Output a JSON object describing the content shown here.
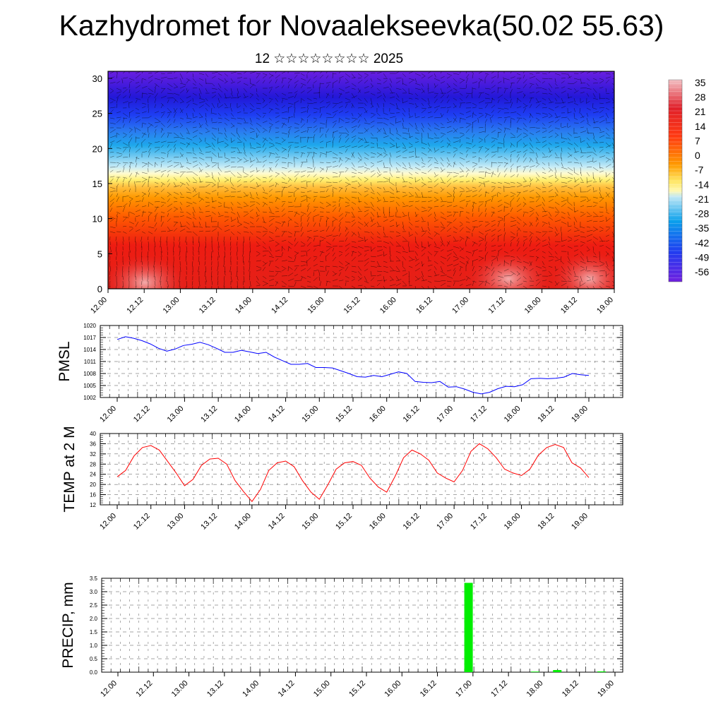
{
  "title": "Kazhydromet for Novaalekseevka(50.02 55.63)",
  "subtitle": "12 ☆☆☆☆☆☆☆☆ 2025",
  "x_labels": [
    "12.00",
    "12.12",
    "13.00",
    "13.12",
    "14.00",
    "14.12",
    "15.00",
    "15.12",
    "16.00",
    "16.12",
    "17.00",
    "17.12",
    "18.00",
    "18.12",
    "19.00"
  ],
  "chart_data": [
    {
      "type": "heatmap",
      "name": "cross-section",
      "x_labels": [
        "12.00",
        "12.12",
        "13.00",
        "13.12",
        "14.00",
        "14.12",
        "15.00",
        "15.12",
        "16.00",
        "16.12",
        "17.00",
        "17.12",
        "18.00",
        "18.12",
        "19.00"
      ],
      "y_ticks": [
        0,
        5,
        10,
        15,
        20,
        25,
        30
      ],
      "ylim": [
        0,
        31
      ],
      "colorbar_labels": [
        "35",
        "28",
        "21",
        "14",
        "7",
        "0",
        "-7",
        "-14",
        "-21",
        "-28",
        "-35",
        "-42",
        "-49",
        "-56"
      ],
      "colors": [
        "#f7c8c8",
        "#e21a1a",
        "#ff4500",
        "#ff9a00",
        "#fff080",
        "#c2e8f5",
        "#0aa0ec",
        "#1f3df0",
        "#6818e8"
      ]
    },
    {
      "type": "line",
      "name": "PMSL",
      "ylabel": "PMSL",
      "ylim": [
        1002,
        1020
      ],
      "y_ticks": [
        1002,
        1005,
        1008,
        1011,
        1014,
        1017,
        1020
      ],
      "x_labels": [
        "12.00",
        "12.12",
        "13.00",
        "13.12",
        "14.00",
        "14.12",
        "15.00",
        "15.12",
        "16.00",
        "16.12",
        "17.00",
        "17.12",
        "18.00",
        "18.12",
        "19.00"
      ],
      "color": "#0000ff",
      "values": [
        1016.5,
        1017.2,
        1016.8,
        1016.2,
        1015.4,
        1014.3,
        1013.6,
        1014.1,
        1015.0,
        1015.3,
        1015.8,
        1015.2,
        1014.3,
        1013.3,
        1013.3,
        1013.8,
        1013.4,
        1013.0,
        1013.3,
        1012.1,
        1011.2,
        1010.3,
        1010.3,
        1010.5,
        1009.5,
        1009.5,
        1009.4,
        1008.7,
        1008.0,
        1007.2,
        1007.1,
        1007.5,
        1007.2,
        1007.8,
        1008.4,
        1008.0,
        1006.0,
        1005.8,
        1005.7,
        1006.0,
        1004.6,
        1004.7,
        1004.1,
        1003.3,
        1002.9,
        1003.3,
        1004.2,
        1004.8,
        1004.7,
        1005.2,
        1006.7,
        1006.8,
        1006.7,
        1006.8,
        1007.1,
        1008.0,
        1007.7,
        1007.5
      ]
    },
    {
      "type": "line",
      "name": "TEMP at 2 M",
      "ylabel": "TEMP at 2 M",
      "ylim": [
        12,
        40
      ],
      "y_ticks": [
        12,
        16,
        20,
        24,
        28,
        32,
        36,
        40
      ],
      "x_labels": [
        "12.00",
        "12.12",
        "13.00",
        "13.12",
        "14.00",
        "14.12",
        "15.00",
        "15.12",
        "16.00",
        "16.12",
        "17.00",
        "17.12",
        "18.00",
        "18.12",
        "19.00"
      ],
      "color": "#ff0000",
      "values": [
        23,
        25.5,
        31.2,
        34.5,
        35.3,
        33.5,
        29,
        24.5,
        19.5,
        22,
        27.5,
        30,
        30.3,
        28,
        21.5,
        17.2,
        13.3,
        18,
        25.5,
        28.5,
        29.2,
        27,
        21.5,
        17,
        14.2,
        19.8,
        26,
        28.5,
        29,
        27.5,
        22.5,
        19,
        17,
        23.2,
        30.5,
        33.5,
        32,
        29.5,
        24.5,
        22.5,
        21,
        25.5,
        33,
        36,
        34,
        30.5,
        26,
        24.5,
        23.5,
        26,
        31.5,
        34.5,
        35.7,
        34.5,
        28.5,
        26.5,
        22.7
      ]
    },
    {
      "type": "bar",
      "name": "PRECIP, mm",
      "ylabel": "PRECIP, mm",
      "ylim": [
        0,
        3.5
      ],
      "y_ticks": [
        "0.0",
        "0.5",
        "1.0",
        "1.5",
        "2.0",
        "2.5",
        "3.0",
        "3.5"
      ],
      "x_labels": [
        "12.00",
        "12.12",
        "13.00",
        "13.12",
        "14.00",
        "14.12",
        "15.00",
        "15.12",
        "16.00",
        "16.12",
        "17.00",
        "17.12",
        "18.00",
        "18.12",
        "19.00"
      ],
      "color": "#00ee00",
      "bars": [
        {
          "x": 39.5,
          "value": 3.33
        },
        {
          "x": 47.0,
          "value": 0.02
        },
        {
          "x": 49.5,
          "value": 0.08
        },
        {
          "x": 54.5,
          "value": 0.03
        }
      ]
    }
  ]
}
